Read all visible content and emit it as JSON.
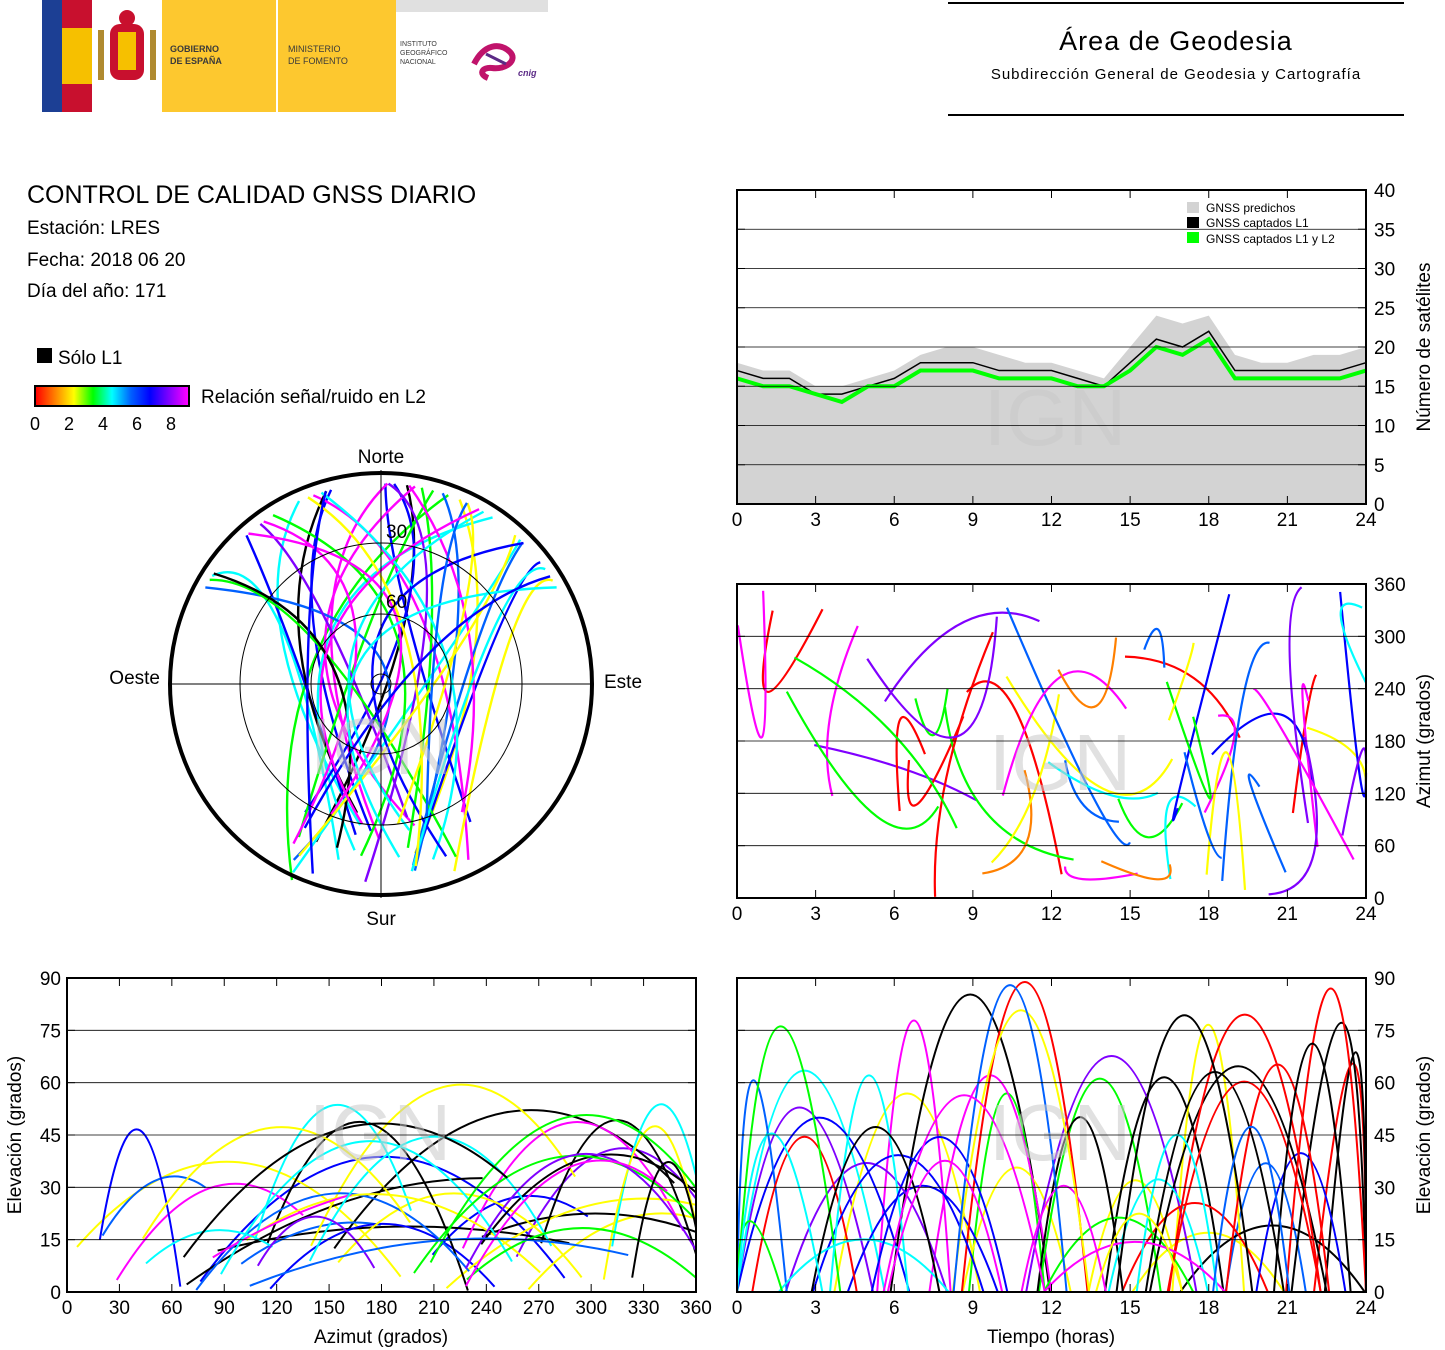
{
  "header": {
    "gov_line1": "GOBIERNO",
    "gov_line2": "DE ESPAÑA",
    "min_line1": "MINISTERIO",
    "min_line2": "DE FOMENTO",
    "ign_line1": "INSTITUTO",
    "ign_line2": "GEOGRÁFICO",
    "ign_line3": "NACIONAL",
    "cnig": "cnig",
    "area_title": "Área de Geodesia",
    "area_subtitle": "Subdirección General de Geodesia y Cartografía",
    "colors": {
      "flag_red": "#c8102e",
      "flag_yellow": "#f6c000",
      "block_yellow": "#fdc82f",
      "eu_blue": "#1c3f94"
    }
  },
  "report": {
    "title": "CONTROL DE CALIDAD GNSS DIARIO",
    "station": "Estación: LRES",
    "date": "Fecha: 2018 06 20",
    "doy": "Día del año: 171"
  },
  "legend": {
    "l1_only": "Sólo L1",
    "snr_label": "Relación señal/ruido en L2",
    "snr_ticks": [
      "0",
      "2",
      "4",
      "6",
      "8"
    ],
    "snr_colors": [
      "#ff0000",
      "#ff8000",
      "#ffff00",
      "#00ff00",
      "#00ffff",
      "#0060ff",
      "#0000ff",
      "#8000ff",
      "#ff00ff"
    ]
  },
  "watermark": "IGN",
  "chart_data": [
    {
      "type": "polar-skyplot",
      "directions": {
        "north": "Norte",
        "south": "Sur",
        "east": "Este",
        "west": "Oeste"
      },
      "ring_labels": [
        "30",
        "60"
      ],
      "track_color_scale": "snr_l2"
    },
    {
      "type": "area",
      "ylabel": "Número de satélites",
      "ylim": [
        0,
        40
      ],
      "xlim": [
        0,
        24
      ],
      "x_ticks": [
        "0",
        "3",
        "6",
        "9",
        "12",
        "15",
        "18",
        "21",
        "24"
      ],
      "y_ticks": [
        "0",
        "5",
        "10",
        "15",
        "20",
        "25",
        "30",
        "35",
        "40"
      ],
      "legend_position": "top-right",
      "series": [
        {
          "name": "GNSS predichos",
          "color": "#d3d3d3",
          "x": [
            0,
            1,
            2,
            3,
            4,
            5,
            6,
            7,
            8,
            9,
            10,
            11,
            12,
            13,
            14,
            15,
            16,
            17,
            18,
            19,
            20,
            21,
            22,
            23,
            24
          ],
          "values": [
            18,
            17,
            17,
            15,
            15,
            16,
            17,
            19,
            20,
            20,
            19,
            18,
            18,
            17,
            16,
            20,
            24,
            23,
            24,
            19,
            18,
            18,
            19,
            19,
            20
          ]
        },
        {
          "name": "GNSS captados L1",
          "color": "#000000",
          "x": [
            0,
            1,
            2,
            3,
            4,
            5,
            6,
            7,
            8,
            9,
            10,
            11,
            12,
            13,
            14,
            15,
            16,
            17,
            18,
            19,
            20,
            21,
            22,
            23,
            24
          ],
          "values": [
            17,
            16,
            16,
            14,
            14,
            15,
            16,
            18,
            18,
            18,
            17,
            17,
            17,
            16,
            15,
            18,
            21,
            20,
            22,
            17,
            17,
            17,
            17,
            17,
            18
          ]
        },
        {
          "name": "GNSS captados L1 y L2",
          "color": "#00ff00",
          "x": [
            0,
            1,
            2,
            3,
            4,
            5,
            6,
            7,
            8,
            9,
            10,
            11,
            12,
            13,
            14,
            15,
            16,
            17,
            18,
            19,
            20,
            21,
            22,
            23,
            24
          ],
          "values": [
            16,
            15,
            15,
            14,
            13,
            15,
            15,
            17,
            17,
            17,
            16,
            16,
            16,
            15,
            15,
            17,
            20,
            19,
            21,
            16,
            16,
            16,
            16,
            16,
            17
          ]
        }
      ]
    },
    {
      "type": "scatter",
      "ylabel": "Azimut (grados)",
      "xlim": [
        0,
        24
      ],
      "ylim": [
        0,
        360
      ],
      "x_ticks": [
        "0",
        "3",
        "6",
        "9",
        "12",
        "15",
        "18",
        "21",
        "24"
      ],
      "y_ticks": [
        "0",
        "60",
        "120",
        "180",
        "240",
        "300",
        "360"
      ],
      "track_color_scale": "snr_l2"
    },
    {
      "type": "scatter",
      "xlabel": "Azimut (grados)",
      "ylabel": "Elevación (grados)",
      "xlim": [
        0,
        360
      ],
      "ylim": [
        0,
        90
      ],
      "x_ticks": [
        "0",
        "30",
        "60",
        "90",
        "120",
        "150",
        "180",
        "210",
        "240",
        "270",
        "300",
        "330",
        "360"
      ],
      "y_ticks": [
        "0",
        "15",
        "30",
        "45",
        "60",
        "75",
        "90"
      ],
      "track_color_scale": "snr_l2"
    },
    {
      "type": "scatter",
      "xlabel": "Tiempo (horas)",
      "ylabel": "Elevación (grados)",
      "xlim": [
        0,
        24
      ],
      "ylim": [
        0,
        90
      ],
      "x_ticks": [
        "0",
        "3",
        "6",
        "9",
        "12",
        "15",
        "18",
        "21",
        "24"
      ],
      "y_ticks": [
        "0",
        "15",
        "30",
        "45",
        "60",
        "75",
        "90"
      ],
      "track_color_scale": "snr_l2"
    }
  ]
}
